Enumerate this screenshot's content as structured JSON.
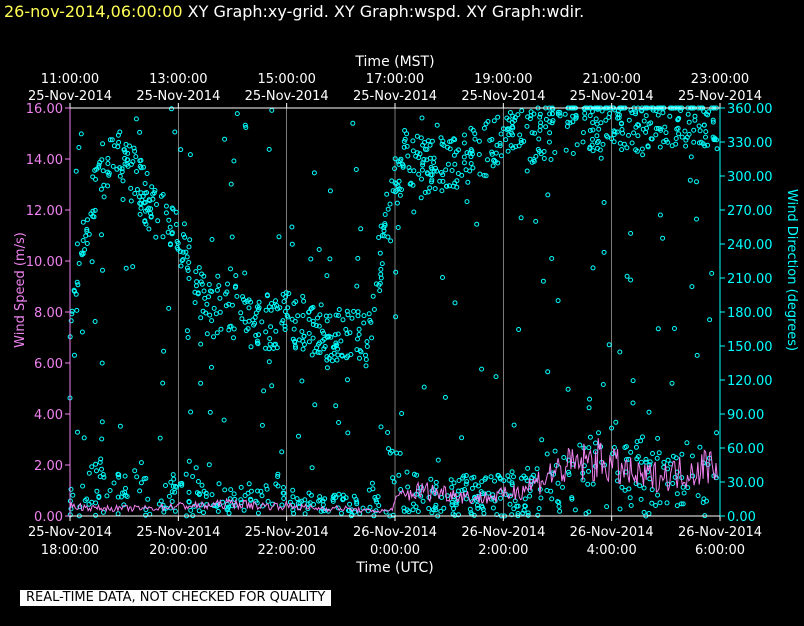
{
  "header": {
    "timestamp": "26-nov-2014,06:00:00",
    "graphs": [
      "XY Graph:xy-grid.",
      "XY Graph:wspd.",
      "XY Graph:wdir."
    ]
  },
  "notice": "REAL-TIME DATA, NOT CHECKED FOR QUALITY",
  "colors": {
    "wspd": "#ee82ee",
    "wdir": "#00ffff",
    "grid": "#ffffff",
    "text": "#ffffff",
    "timestamp": "#ffff55"
  },
  "chart_data": {
    "type": "scatter",
    "top_axis": {
      "title": "Time (MST)",
      "ticks": [
        {
          "time": "11:00:00",
          "date": "25-Nov-2014"
        },
        {
          "time": "13:00:00",
          "date": "25-Nov-2014"
        },
        {
          "time": "15:00:00",
          "date": "25-Nov-2014"
        },
        {
          "time": "17:00:00",
          "date": "25-Nov-2014"
        },
        {
          "time": "19:00:00",
          "date": "25-Nov-2014"
        },
        {
          "time": "21:00:00",
          "date": "25-Nov-2014"
        },
        {
          "time": "23:00:00",
          "date": "25-Nov-2014"
        }
      ]
    },
    "bottom_axis": {
      "title": "Time (UTC)",
      "ticks": [
        {
          "date": "25-Nov-2014",
          "time": "18:00:00"
        },
        {
          "date": "25-Nov-2014",
          "time": "20:00:00"
        },
        {
          "date": "25-Nov-2014",
          "time": "22:00:00"
        },
        {
          "date": "26-Nov-2014",
          "time": "0:00:00"
        },
        {
          "date": "26-Nov-2014",
          "time": "2:00:00"
        },
        {
          "date": "26-Nov-2014",
          "time": "4:00:00"
        },
        {
          "date": "26-Nov-2014",
          "time": "6:00:00"
        }
      ]
    },
    "x_range_utc_hours": [
      18,
      30
    ],
    "left_axis": {
      "title": "Wind Speed (m/s)",
      "ylim": [
        0,
        16
      ],
      "tick_values": [
        0,
        2,
        4,
        6,
        8,
        10,
        12,
        14,
        16
      ],
      "tick_labels": [
        "0.00",
        "2.00",
        "4.00",
        "6.00",
        "8.00",
        "10.00",
        "12.00",
        "14.00",
        "16.00"
      ]
    },
    "right_axis": {
      "title": "Wind Direction (degrees)",
      "ylim": [
        0,
        360
      ],
      "tick_values": [
        0,
        30,
        60,
        90,
        120,
        150,
        180,
        210,
        240,
        270,
        300,
        330,
        360
      ],
      "tick_labels": [
        "0.00",
        "30.00",
        "60.00",
        "90.00",
        "120.00",
        "150.00",
        "180.00",
        "210.00",
        "240.00",
        "270.00",
        "300.00",
        "330.00",
        "360.00"
      ]
    },
    "grid": "vertical",
    "series": [
      {
        "name": "wspd",
        "type": "line",
        "axis": "left",
        "x": [
          18.0,
          18.5,
          19.0,
          19.5,
          20.0,
          20.5,
          21.0,
          21.5,
          22.0,
          22.5,
          23.0,
          23.5,
          23.9,
          24.1,
          24.5,
          25.0,
          25.5,
          26.0,
          26.5,
          27.0,
          27.5,
          27.8,
          28.0,
          28.5,
          29.0,
          29.5,
          29.9
        ],
        "values": [
          0.4,
          0.3,
          0.3,
          0.3,
          0.4,
          0.4,
          0.5,
          0.4,
          0.4,
          0.3,
          0.3,
          0.2,
          0.2,
          0.8,
          1.0,
          0.9,
          0.7,
          0.8,
          1.2,
          1.8,
          2.1,
          2.2,
          2.0,
          1.5,
          1.6,
          1.8,
          2.1
        ]
      },
      {
        "name": "wdir",
        "type": "scatter",
        "axis": "right",
        "x": [
          18.0,
          18.5,
          19.0,
          19.5,
          20.0,
          20.5,
          21.0,
          21.5,
          22.0,
          22.5,
          23.0,
          23.5,
          23.9,
          24.2,
          24.5,
          25.0,
          25.5,
          26.0,
          26.5,
          27.0,
          27.5,
          28.0,
          28.5,
          29.0,
          29.5,
          29.9
        ],
        "values": [
          170,
          300,
          320,
          270,
          250,
          180,
          180,
          170,
          175,
          165,
          160,
          155,
          280,
          320,
          310,
          310,
          320,
          330,
          335,
          340,
          345,
          350,
          345,
          350,
          350,
          352
        ],
        "low_x": [
          18.0,
          18.5,
          19.0,
          19.5,
          20.0,
          20.5,
          21.0,
          21.5,
          22.0,
          22.5,
          23.0,
          23.5,
          23.9,
          24.2,
          24.5,
          25.0,
          25.5,
          26.0,
          26.5,
          27.0,
          27.5,
          28.0,
          28.5,
          29.0,
          29.5,
          29.9
        ],
        "low_values": [
          20,
          40,
          30,
          35,
          30,
          25,
          20,
          25,
          20,
          15,
          15,
          15,
          60,
          40,
          30,
          25,
          30,
          35,
          40,
          45,
          50,
          70,
          55,
          50,
          45,
          60
        ]
      }
    ]
  }
}
